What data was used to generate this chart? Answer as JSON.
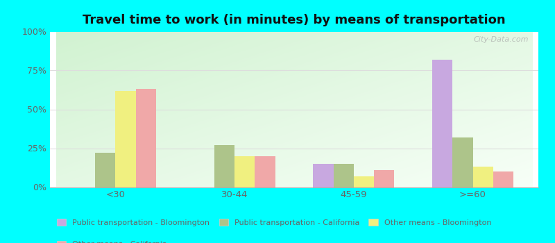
{
  "title": "Travel time to work (in minutes) by means of transportation",
  "categories": [
    "<30",
    "30-44",
    "45-59",
    ">=60"
  ],
  "series": {
    "Public transportation - Bloomington": [
      0,
      0,
      15,
      82
    ],
    "Public transportation - California": [
      22,
      27,
      15,
      32
    ],
    "Other means - Bloomington": [
      62,
      20,
      7,
      13
    ],
    "Other means - California": [
      63,
      20,
      11,
      10
    ]
  },
  "colors": {
    "Public transportation - Bloomington": "#c8a8e0",
    "Public transportation - California": "#adc48a",
    "Other means - Bloomington": "#f0f080",
    "Other means - California": "#f0a8a8"
  },
  "ylim": [
    0,
    100
  ],
  "yticks": [
    0,
    25,
    50,
    75,
    100
  ],
  "yticklabels": [
    "0%",
    "25%",
    "50%",
    "75%",
    "100%"
  ],
  "background_color": "#00ffff",
  "bar_width": 0.17,
  "title_fontsize": 13,
  "watermark": "City-Data.com",
  "tick_color": "#666666",
  "grid_color": "#dddddd"
}
